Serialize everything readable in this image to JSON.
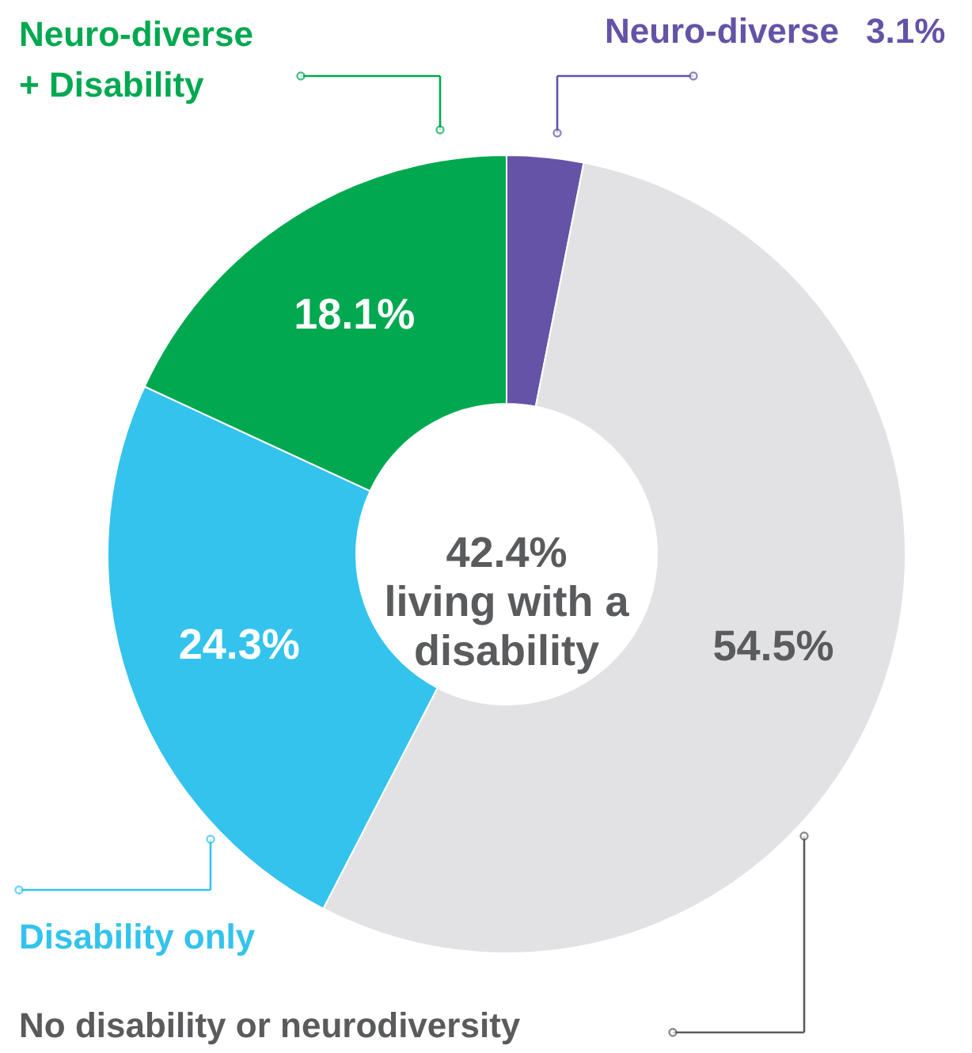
{
  "chart_data": {
    "type": "donut",
    "categories": [
      "Neuro-diverse",
      "No disability or neurodiversity",
      "Disability only",
      "Neuro-diverse\n+ Disability"
    ],
    "values": [
      3.1,
      54.5,
      24.3,
      18.1
    ],
    "colors": [
      "#6453a6",
      "#e2e2e4",
      "#33c3ed",
      "#00a850"
    ],
    "value_labels": [
      "3.1%",
      "54.5%",
      "24.3%",
      "18.1%"
    ],
    "annotations": [
      "42.4%\nliving with a\ndisability"
    ]
  }
}
